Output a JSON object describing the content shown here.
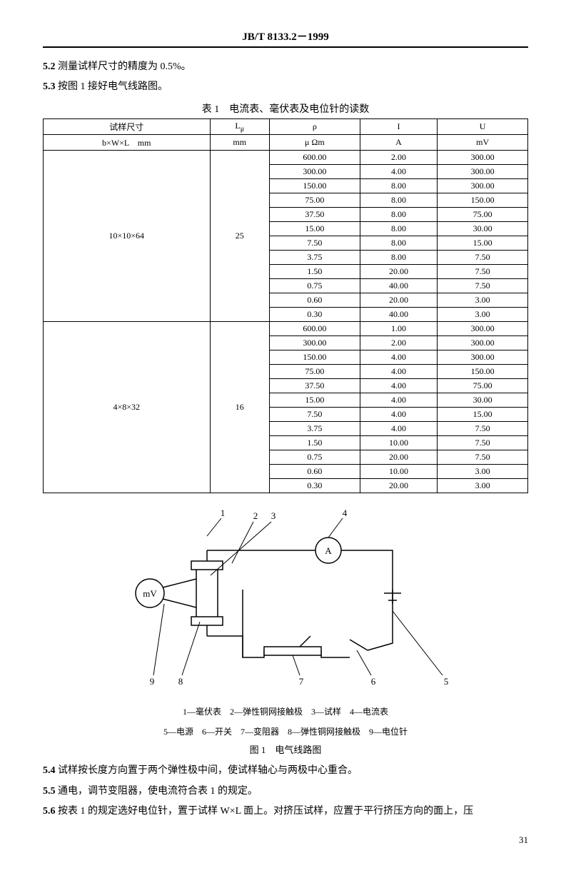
{
  "standard": "JB/T 8133.2－1999",
  "sections": {
    "s52_num": "5.2",
    "s52_text": "测量试样尺寸的精度为 0.5%。",
    "s53_num": "5.3",
    "s53_text": "按图 1 接好电气线路图。",
    "s54_num": "5.4",
    "s54_text": "试样按长度方向置于两个弹性极中间，使试样轴心与两极中心重合。",
    "s55_num": "5.5",
    "s55_text": "通电，调节变阻器，使电流符合表 1 的规定。",
    "s56_num": "5.6",
    "s56_text": "按表 1 的规定选好电位针，置于试样 W×L 面上。对挤压试样，应置于平行挤压方向的面上，压"
  },
  "table": {
    "title": "表 1　电流表、毫伏表及电位针的读数",
    "headers": {
      "c1a": "试样尺寸",
      "c1b": "b×W×L　mm",
      "c2a": "L",
      "c2a_sub": "μ",
      "c2b": "mm",
      "c3a": "ρ",
      "c3b": "μ Ωm",
      "c4a": "I",
      "c4b": "A",
      "c5a": "U",
      "c5b": "mV"
    },
    "groups": [
      {
        "size": "10×10×64",
        "lmu": "25",
        "rows": [
          [
            "600.00",
            "2.00",
            "300.00"
          ],
          [
            "300.00",
            "4.00",
            "300.00"
          ],
          [
            "150.00",
            "8.00",
            "300.00"
          ],
          [
            "75.00",
            "8.00",
            "150.00"
          ],
          [
            "37.50",
            "8.00",
            "75.00"
          ],
          [
            "15.00",
            "8.00",
            "30.00"
          ],
          [
            "7.50",
            "8.00",
            "15.00"
          ],
          [
            "3.75",
            "8.00",
            "7.50"
          ],
          [
            "1.50",
            "20.00",
            "7.50"
          ],
          [
            "0.75",
            "40.00",
            "7.50"
          ],
          [
            "0.60",
            "20.00",
            "3.00"
          ],
          [
            "0.30",
            "40.00",
            "3.00"
          ]
        ]
      },
      {
        "size": "4×8×32",
        "lmu": "16",
        "rows": [
          [
            "600.00",
            "1.00",
            "300.00"
          ],
          [
            "300.00",
            "2.00",
            "300.00"
          ],
          [
            "150.00",
            "4.00",
            "300.00"
          ],
          [
            "75.00",
            "4.00",
            "150.00"
          ],
          [
            "37.50",
            "4.00",
            "75.00"
          ],
          [
            "15.00",
            "4.00",
            "30.00"
          ],
          [
            "7.50",
            "4.00",
            "15.00"
          ],
          [
            "3.75",
            "4.00",
            "7.50"
          ],
          [
            "1.50",
            "10.00",
            "7.50"
          ],
          [
            "0.75",
            "20.00",
            "7.50"
          ],
          [
            "0.60",
            "10.00",
            "3.00"
          ],
          [
            "0.30",
            "20.00",
            "3.00"
          ]
        ]
      }
    ]
  },
  "figure": {
    "labels": {
      "n1": "1",
      "n2": "2",
      "n3": "3",
      "n4": "4",
      "n5": "5",
      "n6": "6",
      "n7": "7",
      "n8": "8",
      "n9": "9"
    },
    "mv": "mV",
    "A": "A",
    "legend1": "1—毫伏表　2—弹性铜网接触极　3—试样　4—电流表",
    "legend2": "5—电源　6—开关　7—变阻器　8—弹性铜网接触极　9—电位针",
    "caption": "图 1　电气线路图"
  },
  "pageNum": "31",
  "style": {
    "stroke": "#000000",
    "stroke_width": 1.5,
    "fill_bg": "#ffffff"
  }
}
